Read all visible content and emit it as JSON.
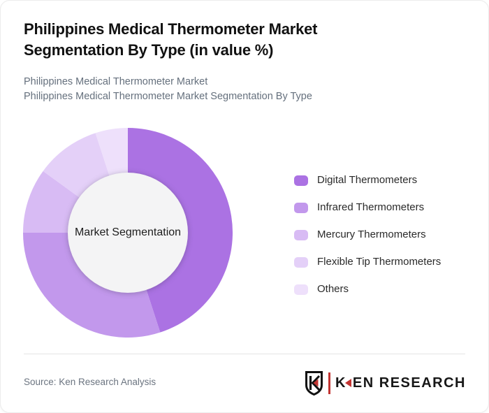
{
  "header": {
    "title_line1": "Philippines Medical Thermometer Market",
    "title_line2": "Segmentation By Type (in value %)",
    "subtitle_line1": "Philippines Medical Thermometer Market",
    "subtitle_line2": "Philippines Medical Thermometer Market Segmentation By Type"
  },
  "chart_data": {
    "type": "pie",
    "variant": "donut",
    "title": "Philippines Medical Thermometer Market Segmentation By Type (in value %)",
    "unit": "value %",
    "center_label": "Market Segmentation",
    "start_angle_deg": 0,
    "direction": "clockwise",
    "legend_position": "right",
    "categories": [
      "Digital Thermometers",
      "Infrared Thermometers",
      "Mercury Thermometers",
      "Flexible Tip Thermometers",
      "Others"
    ],
    "values": [
      45,
      30,
      10,
      10,
      5
    ],
    "colors": [
      "#ab72e3",
      "#c298ec",
      "#d8bbf4",
      "#e4d0f8",
      "#eee0fb"
    ],
    "inner_circle_color": "#f4f4f5"
  },
  "footer": {
    "source": "Source: Ken Research Analysis",
    "brand": {
      "shield_letter": "K",
      "name_first_letter": "K",
      "name_rest": "EN RESEARCH",
      "accent_color": "#c23431"
    }
  }
}
